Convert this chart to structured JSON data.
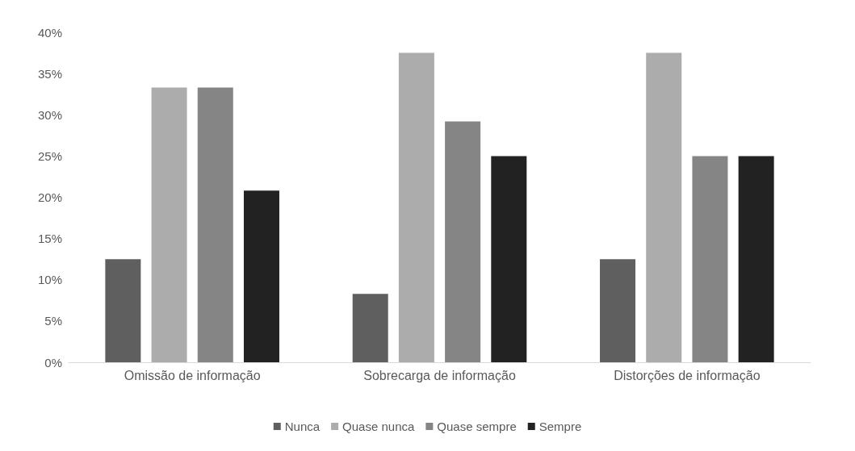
{
  "chart_data": {
    "type": "bar",
    "categories": [
      "Omissão de informação",
      "Sobrecarga de informação",
      "Distorções de informação"
    ],
    "series": [
      {
        "name": "Nunca",
        "color": "#5f5f5f",
        "values": [
          12.5,
          8.3,
          12.5
        ]
      },
      {
        "name": "Quase nunca",
        "color": "#acacac",
        "values": [
          33.3,
          37.5,
          37.5
        ]
      },
      {
        "name": "Quase sempre",
        "color": "#858585",
        "values": [
          33.3,
          29.2,
          25
        ]
      },
      {
        "name": "Sempre",
        "color": "#222222",
        "values": [
          20.8,
          25,
          25
        ]
      }
    ],
    "ylim": [
      0,
      40
    ],
    "yticks": [
      {
        "value": 0,
        "label": "0%"
      },
      {
        "value": 5,
        "label": "5%"
      },
      {
        "value": 10,
        "label": "10%"
      },
      {
        "value": 15,
        "label": "15%"
      },
      {
        "value": 20,
        "label": "20%"
      },
      {
        "value": 25,
        "label": "25%"
      },
      {
        "value": 30,
        "label": "30%"
      },
      {
        "value": 35,
        "label": "35%"
      },
      {
        "value": 40,
        "label": "40%"
      }
    ],
    "grid": false,
    "legend": "bottom"
  }
}
